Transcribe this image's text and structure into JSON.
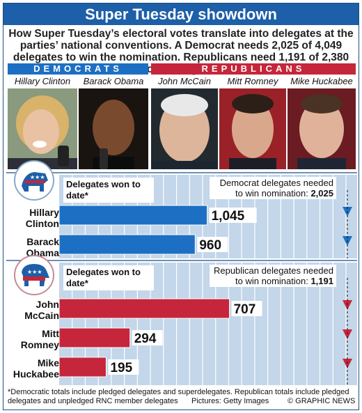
{
  "title": "Super Tuesday showdown",
  "subtitle": "How Super Tuesday’s electoral votes translate into delegates at the parties’ national conventions. A Democrat needs 2,025 of 4,049 delegates to win the nomination. Republicans need 1,191 of 2,380 total delegates",
  "parties": {
    "democrats": "DEMOCRATS",
    "republicans": "REPUBLICANS"
  },
  "candidates_photos": [
    "Hillary Clinton",
    "Barack Obama",
    "John McCain",
    "Mitt Romney",
    "Mike Huckabee"
  ],
  "colors": {
    "dem": "#1d6fc4",
    "rep": "#c5263b",
    "chart_bg": "#c3d6ea",
    "grid": "#ffffff"
  },
  "chart_data": [
    {
      "type": "bar",
      "header": "Delegates won to date*",
      "target_label": "Democrat delegates needed to win nomination:",
      "target_value": "2,025",
      "target": 2025,
      "categories": [
        "Hillary Clinton",
        "Barack Obama"
      ],
      "values": [
        1045,
        960
      ],
      "value_labels": [
        "1,045",
        "960"
      ],
      "xlim": [
        0,
        2025
      ],
      "grid": true,
      "color": "#1d6fc4"
    },
    {
      "type": "bar",
      "header": "Delegates won to date*",
      "target_label": "Republican delegates needed to win nomination:",
      "target_value": "1,191",
      "target": 1191,
      "categories": [
        "John McCain",
        "Mitt Romney",
        "Mike Huckabee"
      ],
      "values": [
        707,
        294,
        195
      ],
      "value_labels": [
        "707",
        "294",
        "195"
      ],
      "xlim": [
        0,
        1191
      ],
      "grid": true,
      "color": "#c5263b"
    }
  ],
  "footnote": {
    "text": "*Democratic totals include pledged delegates and superdelegates. Republican totals include pledged delegates and unpledged RNC member delegates",
    "credit": "Pictures: Getty Images",
    "source": "© GRAPHIC NEWS"
  }
}
